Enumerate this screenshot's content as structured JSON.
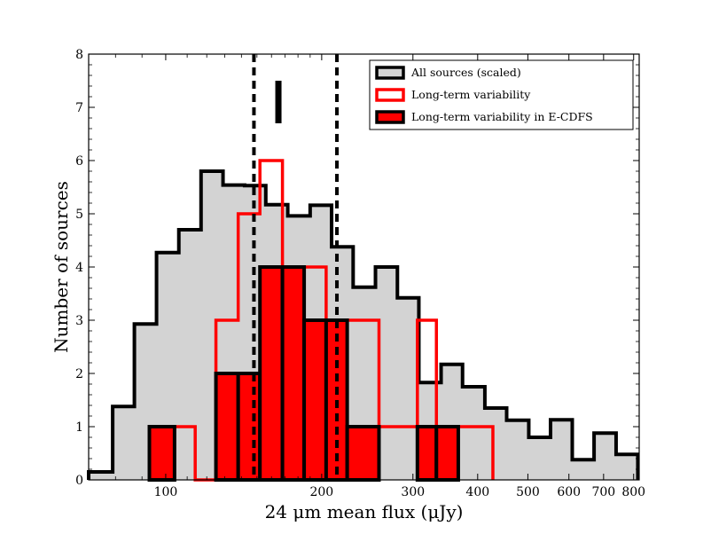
{
  "chart_data": {
    "type": "histogram",
    "x_scale": "log",
    "xlabel": "24 μm mean flux (μJy)",
    "ylabel": "Number of sources",
    "xlim": [
      71,
      820
    ],
    "ylim": [
      0,
      8
    ],
    "x_ticks": [
      100,
      200,
      300,
      400,
      500,
      600,
      700,
      800
    ],
    "x_tick_labels": [
      "100",
      "200",
      "300",
      "400",
      "500",
      "600",
      "700",
      "800"
    ],
    "y_ticks": [
      0,
      1,
      2,
      3,
      4,
      5,
      6,
      7,
      8
    ],
    "y_tick_labels": [
      "0",
      "1",
      "2",
      "3",
      "4",
      "5",
      "6",
      "7",
      "8"
    ],
    "annotation": {
      "text": "I",
      "dashed_lines_at": [
        148,
        214
      ],
      "bar_x": 165,
      "bar_y_range": [
        6.7,
        7.5
      ]
    },
    "legend": {
      "position": "top-right",
      "entries": [
        {
          "label": "All sources (scaled)",
          "fill": "#d3d3d3",
          "edge": "#000000"
        },
        {
          "label": "Long-term variability",
          "fill": "none",
          "edge": "#ff0000"
        },
        {
          "label": "Long-term variability in E-CDFS",
          "fill": "#ff0000",
          "edge": "#000000"
        }
      ]
    },
    "series": [
      {
        "name": "All sources (scaled)",
        "style": "filled-step",
        "fill": "#d3d3d3",
        "edge": "#000000",
        "edges": [
          71,
          79,
          87,
          96,
          106,
          117,
          129,
          142,
          156,
          172,
          190,
          209,
          230,
          254,
          280,
          308,
          340,
          374,
          413,
          455,
          502,
          553,
          609,
          671,
          740,
          815
        ],
        "values": [
          0.15,
          1.38,
          2.93,
          4.27,
          4.7,
          5.8,
          5.54,
          5.53,
          5.17,
          4.96,
          5.16,
          4.38,
          3.62,
          4.0,
          3.42,
          1.83,
          2.17,
          1.75,
          1.35,
          1.12,
          0.8,
          1.13,
          0.38,
          0.88,
          0.48
        ]
      },
      {
        "name": "Long-term variability",
        "style": "step",
        "fill": "none",
        "edge": "#ff0000",
        "edges": [
          93,
          114,
          125,
          138,
          152,
          168,
          185,
          204,
          224,
          258,
          306,
          333,
          367,
          428
        ],
        "values": [
          1,
          0,
          3,
          5,
          6,
          4,
          4,
          3,
          3,
          1,
          3,
          1,
          1
        ]
      },
      {
        "name": "Long-term variability in E-CDFS",
        "style": "filled-step",
        "fill": "#ff0000",
        "edge": "#000000",
        "edges": [
          93,
          104,
          114,
          125,
          138,
          152,
          168,
          185,
          204,
          224,
          258,
          306,
          333,
          367
        ],
        "values": [
          1,
          0,
          0,
          2,
          2,
          4,
          4,
          3,
          3,
          1,
          0,
          1,
          1
        ]
      }
    ]
  }
}
